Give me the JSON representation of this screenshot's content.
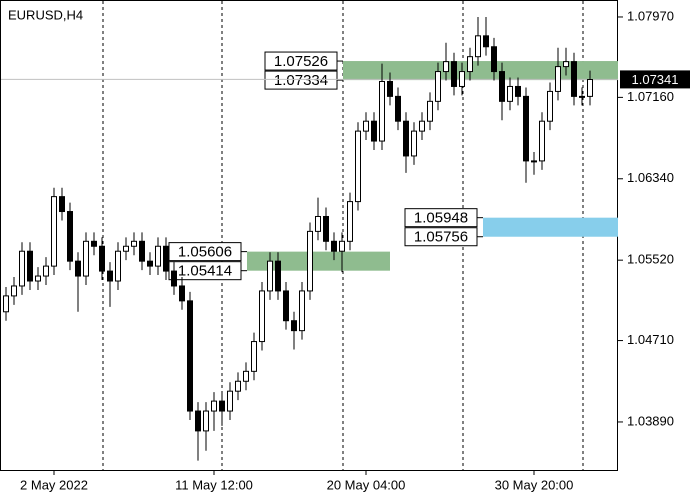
{
  "chart_data": {
    "type": "candlestick",
    "title": "EURUSD,H4",
    "categories": [
      null,
      null,
      null,
      null,
      null,
      null,
      "2 May 2022",
      null,
      null,
      null,
      null,
      null,
      null,
      null,
      null,
      null,
      null,
      null,
      null,
      null,
      null,
      null,
      null,
      null,
      null,
      null,
      "11 May 12:00",
      null,
      null,
      null,
      null,
      null,
      null,
      null,
      null,
      null,
      null,
      null,
      null,
      null,
      null,
      null,
      null,
      null,
      null,
      "20 May 04:00",
      null,
      null,
      null,
      null,
      null,
      null,
      null,
      null,
      null,
      null,
      null,
      null,
      null,
      null,
      null,
      null,
      null,
      null,
      null,
      null,
      "30 May 20:00",
      null,
      null,
      null,
      null,
      null,
      null,
      null
    ],
    "open": [
      1.05,
      1.0516,
      1.0526,
      1.0561,
      1.0531,
      1.0536,
      1.0546,
      1.0616,
      1.0601,
      1.0551,
      1.0536,
      1.0571,
      1.0566,
      1.0541,
      1.0531,
      1.0561,
      1.0566,
      1.0571,
      1.0551,
      1.0546,
      1.0566,
      1.0541,
      1.0526,
      1.0511,
      1.04,
      1.038,
      1.04,
      1.041,
      1.04,
      1.042,
      1.043,
      1.044,
      1.047,
      1.0521,
      1.0551,
      1.0521,
      1.0491,
      1.0481,
      1.0521,
      1.0581,
      1.0596,
      1.0571,
      1.0561,
      1.0571,
      1.0611,
      1.0682,
      1.0692,
      1.0672,
      1.0732,
      1.0717,
      1.0692,
      1.0657,
      1.0682,
      1.0692,
      1.0712,
      1.0742,
      1.0752,
      1.0727,
      1.0742,
      1.0757,
      1.0778,
      1.0767,
      1.0742,
      1.0712,
      1.0727,
      1.0717,
      1.0652,
      1.0652,
      1.0692,
      1.0722,
      1.0747,
      1.0752,
      1.0717,
      1.0717
    ],
    "high": [
      1.0525,
      1.0535,
      1.057,
      1.057,
      1.0545,
      1.0555,
      1.0625,
      1.0625,
      1.061,
      1.056,
      1.058,
      1.058,
      1.0575,
      1.055,
      1.057,
      1.0575,
      1.058,
      1.058,
      1.056,
      1.0575,
      1.0575,
      1.055,
      1.0535,
      1.052,
      1.0409,
      1.0409,
      1.0419,
      1.0419,
      1.0429,
      1.0439,
      1.0449,
      1.0479,
      1.053,
      1.056,
      1.056,
      1.053,
      1.05,
      1.053,
      1.059,
      1.0615,
      1.0605,
      1.058,
      1.058,
      1.062,
      1.0691,
      1.0701,
      1.0701,
      1.075,
      1.0741,
      1.0726,
      1.0701,
      1.0691,
      1.0701,
      1.0721,
      1.0751,
      1.0771,
      1.0761,
      1.0751,
      1.0766,
      1.0797,
      1.0797,
      1.0776,
      1.0751,
      1.0736,
      1.0736,
      1.0726,
      1.0661,
      1.0701,
      1.0731,
      1.0766,
      1.0766,
      1.0761,
      1.0726,
      1.0743
    ],
    "low": [
      1.0491,
      1.0507,
      1.0517,
      1.0522,
      1.0522,
      1.0527,
      1.0537,
      1.0592,
      1.0542,
      1.05,
      1.0527,
      1.0557,
      1.0532,
      1.0505,
      1.0522,
      1.0552,
      1.0557,
      1.0542,
      1.0537,
      1.0537,
      1.0532,
      1.0517,
      1.0502,
      1.0391,
      1.035,
      1.036,
      1.038,
      1.0385,
      1.0391,
      1.0411,
      1.0421,
      1.0431,
      1.0461,
      1.0512,
      1.0512,
      1.0482,
      1.0462,
      1.0472,
      1.0512,
      1.0572,
      1.0562,
      1.0552,
      1.054,
      1.0562,
      1.0602,
      1.0673,
      1.0663,
      1.0663,
      1.0708,
      1.0683,
      1.064,
      1.0648,
      1.0673,
      1.0683,
      1.0703,
      1.0733,
      1.0718,
      1.0718,
      1.0733,
      1.0748,
      1.0758,
      1.0733,
      1.0693,
      1.0703,
      1.0708,
      1.063,
      1.0638,
      1.0643,
      1.0683,
      1.0713,
      1.0738,
      1.0708,
      1.0708,
      1.0708
    ],
    "close": [
      1.0516,
      1.0526,
      1.0561,
      1.0531,
      1.0536,
      1.0546,
      1.0616,
      1.0601,
      1.0551,
      1.0536,
      1.0571,
      1.0566,
      1.0541,
      1.0531,
      1.0561,
      1.0566,
      1.0571,
      1.0551,
      1.0546,
      1.0566,
      1.0541,
      1.0526,
      1.0511,
      1.04,
      1.038,
      1.04,
      1.041,
      1.04,
      1.042,
      1.043,
      1.044,
      1.047,
      1.0521,
      1.0551,
      1.0521,
      1.0491,
      1.0481,
      1.0521,
      1.0581,
      1.0596,
      1.0571,
      1.0561,
      1.0571,
      1.0611,
      1.0682,
      1.0692,
      1.0672,
      1.0732,
      1.0717,
      1.0692,
      1.0657,
      1.0682,
      1.0692,
      1.0712,
      1.0742,
      1.0752,
      1.0727,
      1.0742,
      1.0757,
      1.0778,
      1.0767,
      1.0742,
      1.0712,
      1.0727,
      1.0717,
      1.0652,
      1.0652,
      1.0692,
      1.0722,
      1.0747,
      1.0752,
      1.0717,
      1.0717,
      1.0734
    ],
    "ylim": [
      1.03406,
      1.08141
    ],
    "yticks": [
      {
        "value": 1.0797,
        "label": "1.07970"
      },
      {
        "value": 1.0716,
        "label": "1.07160"
      },
      {
        "value": 1.0634,
        "label": "1.06340"
      },
      {
        "value": 1.0552,
        "label": "1.05520"
      },
      {
        "value": 1.0471,
        "label": "1.04710"
      },
      {
        "value": 1.0389,
        "label": "1.03890"
      }
    ],
    "current_price": 1.07341,
    "zones": [
      {
        "high": 1.07526,
        "low": 1.07334,
        "color": "#8fbc8f"
      },
      {
        "high": 1.05606,
        "low": 1.05414,
        "color": "#8fbc8f"
      },
      {
        "high": 1.05948,
        "low": 1.05756,
        "color": "#87ceeb"
      }
    ]
  }
}
